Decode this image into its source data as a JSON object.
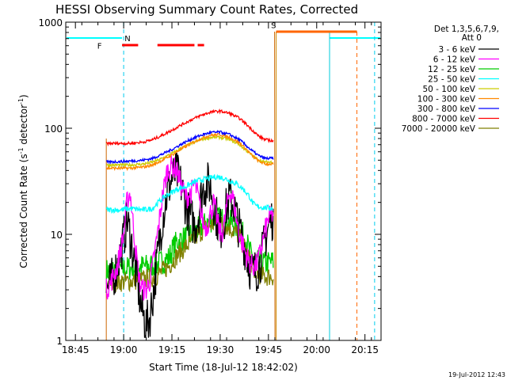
{
  "chart_data": {
    "type": "line",
    "title": "HESSI Observing Summary Count Rates, Corrected",
    "xlabel": "Start Time (18-Jul-12 18:42:02)",
    "ylabel_main": "Corrected Count Rate (s",
    "ylabel_sup1": "-1",
    "ylabel_mid": " detector",
    "ylabel_sup2": "-1",
    "ylabel_end": ")",
    "x_unit": "minutes since 18:42:02",
    "xlim": [
      0,
      98
    ],
    "ylim": [
      1,
      1000
    ],
    "yscale": "log",
    "x_ticks": [
      {
        "label": "18:45",
        "x": 3
      },
      {
        "label": "19:00",
        "x": 18
      },
      {
        "label": "19:15",
        "x": 33
      },
      {
        "label": "19:30",
        "x": 48
      },
      {
        "label": "19:45",
        "x": 63
      },
      {
        "label": "20:00",
        "x": 78
      },
      {
        "label": "20:15",
        "x": 93
      }
    ],
    "y_ticks": [
      {
        "label": "1",
        "v": 1
      },
      {
        "label": "10",
        "v": 10
      },
      {
        "label": "100",
        "v": 100
      },
      {
        "label": "1000",
        "v": 1000
      }
    ],
    "legend_header": [
      "Det 1,3,5,6,7,9,",
      "Att 0"
    ],
    "legend_placement": "right",
    "timestamp": "19-Jul-2012 12:43",
    "data_window": [
      12.6,
      64.9
    ],
    "series": [
      {
        "name": "3 - 6 keV",
        "color": "#000000",
        "points": [
          [
            12.6,
            3
          ],
          [
            14,
            3.5
          ],
          [
            16,
            5
          ],
          [
            18,
            9
          ],
          [
            19,
            14
          ],
          [
            20.5,
            8
          ],
          [
            22,
            4
          ],
          [
            23.5,
            2
          ],
          [
            25,
            1.4
          ],
          [
            26,
            1.6
          ],
          [
            27,
            2.5
          ],
          [
            28.5,
            6
          ],
          [
            30,
            14
          ],
          [
            31.5,
            24
          ],
          [
            33,
            34
          ],
          [
            34.5,
            38
          ],
          [
            36,
            28
          ],
          [
            37.5,
            18
          ],
          [
            39,
            14
          ],
          [
            40,
            12
          ],
          [
            41,
            14
          ],
          [
            42,
            22
          ],
          [
            43,
            28
          ],
          [
            44,
            30
          ],
          [
            45,
            28
          ],
          [
            46,
            20
          ],
          [
            47,
            14
          ],
          [
            48,
            11
          ],
          [
            49,
            13
          ],
          [
            50,
            18
          ],
          [
            51,
            22
          ],
          [
            52,
            20
          ],
          [
            53,
            15
          ],
          [
            54,
            11
          ],
          [
            55,
            9
          ],
          [
            56,
            7
          ],
          [
            57,
            5
          ],
          [
            58,
            4.5
          ],
          [
            59,
            4.5
          ],
          [
            60,
            5
          ],
          [
            61,
            6.5
          ],
          [
            62,
            9
          ],
          [
            63,
            12
          ],
          [
            64.6,
            15
          ]
        ]
      },
      {
        "name": "6 - 12 keV",
        "color": "#ff00ff",
        "points": [
          [
            12.6,
            3
          ],
          [
            14,
            3.5
          ],
          [
            16,
            5
          ],
          [
            18,
            10
          ],
          [
            19,
            20
          ],
          [
            20,
            25
          ],
          [
            21,
            12
          ],
          [
            22,
            6
          ],
          [
            23,
            3.5
          ],
          [
            24,
            3
          ],
          [
            25,
            3
          ],
          [
            26,
            3.5
          ],
          [
            27,
            5
          ],
          [
            28.5,
            10
          ],
          [
            30,
            22
          ],
          [
            31.5,
            40
          ],
          [
            33,
            45
          ],
          [
            34.5,
            40
          ],
          [
            36,
            28
          ],
          [
            37.5,
            22
          ],
          [
            39,
            25
          ],
          [
            40,
            30
          ],
          [
            41,
            24
          ],
          [
            42,
            16
          ],
          [
            43,
            12
          ],
          [
            44,
            12
          ],
          [
            45,
            16
          ],
          [
            46,
            20
          ],
          [
            47,
            14
          ],
          [
            48,
            10
          ],
          [
            49,
            11
          ],
          [
            50,
            18
          ],
          [
            51,
            26
          ],
          [
            52,
            22
          ],
          [
            53,
            14
          ],
          [
            54,
            10
          ],
          [
            55,
            8
          ],
          [
            56,
            6.5
          ],
          [
            57,
            5.5
          ],
          [
            58,
            5
          ],
          [
            59,
            5
          ],
          [
            60,
            6
          ],
          [
            61,
            8
          ],
          [
            62,
            11
          ],
          [
            63,
            14
          ],
          [
            64.6,
            16
          ]
        ]
      },
      {
        "name": "12 - 25 keV",
        "color": "#00cc00",
        "points": [
          [
            12.6,
            4.5
          ],
          [
            20,
            4.8
          ],
          [
            25,
            5
          ],
          [
            28,
            5.2
          ],
          [
            30,
            5.5
          ],
          [
            32,
            6
          ],
          [
            33,
            7
          ],
          [
            34.5,
            8.5
          ],
          [
            36,
            9
          ],
          [
            38,
            9.5
          ],
          [
            40,
            10.5
          ],
          [
            42,
            11.5
          ],
          [
            44,
            13
          ],
          [
            46,
            14
          ],
          [
            48,
            14
          ],
          [
            50,
            13.5
          ],
          [
            52,
            12.5
          ],
          [
            54,
            11
          ],
          [
            56,
            9
          ],
          [
            57,
            7
          ],
          [
            58,
            6
          ],
          [
            60,
            5.5
          ],
          [
            62,
            5.3
          ],
          [
            64.6,
            5.5
          ]
        ]
      },
      {
        "name": "25 - 50 keV",
        "color": "#00ffff",
        "points": [
          [
            12.6,
            17
          ],
          [
            17,
            17
          ],
          [
            20,
            17.5
          ],
          [
            24,
            17
          ],
          [
            27,
            17.5
          ],
          [
            28,
            19
          ],
          [
            29.5,
            21
          ],
          [
            31,
            23
          ],
          [
            33,
            25
          ],
          [
            35,
            27
          ],
          [
            37,
            28
          ],
          [
            39,
            30
          ],
          [
            41,
            32
          ],
          [
            43,
            33
          ],
          [
            45,
            34
          ],
          [
            47,
            35
          ],
          [
            49,
            34
          ],
          [
            51,
            32
          ],
          [
            53,
            30
          ],
          [
            55,
            27
          ],
          [
            57,
            23
          ],
          [
            58,
            20
          ],
          [
            59,
            18.5
          ],
          [
            61,
            18
          ],
          [
            64.6,
            17.5
          ]
        ]
      },
      {
        "name": "50 - 100 keV",
        "color": "#cccc00",
        "points": [
          [
            12.6,
            45
          ],
          [
            20,
            45
          ],
          [
            24,
            46
          ],
          [
            27,
            48
          ],
          [
            30,
            52
          ],
          [
            33,
            58
          ],
          [
            36,
            65
          ],
          [
            39,
            72
          ],
          [
            42,
            78
          ],
          [
            45,
            82
          ],
          [
            48,
            82
          ],
          [
            51,
            78
          ],
          [
            54,
            70
          ],
          [
            56,
            62
          ],
          [
            58,
            55
          ],
          [
            60,
            50
          ],
          [
            62,
            48
          ],
          [
            64.6,
            48
          ]
        ]
      },
      {
        "name": "100 - 300 keV",
        "color": "#ff8800",
        "points": [
          [
            12.6,
            42
          ],
          [
            20,
            42
          ],
          [
            24,
            43
          ],
          [
            27,
            45
          ],
          [
            30,
            50
          ],
          [
            33,
            56
          ],
          [
            36,
            64
          ],
          [
            39,
            72
          ],
          [
            42,
            80
          ],
          [
            45,
            86
          ],
          [
            48,
            87
          ],
          [
            51,
            82
          ],
          [
            54,
            73
          ],
          [
            56,
            64
          ],
          [
            58,
            55
          ],
          [
            60,
            49
          ],
          [
            62,
            46
          ],
          [
            64.6,
            46
          ]
        ]
      },
      {
        "name": "300 - 800 keV",
        "color": "#0000ff",
        "points": [
          [
            12.6,
            48
          ],
          [
            20,
            49
          ],
          [
            24,
            50
          ],
          [
            27,
            52
          ],
          [
            30,
            57
          ],
          [
            33,
            63
          ],
          [
            36,
            71
          ],
          [
            39,
            79
          ],
          [
            42,
            86
          ],
          [
            45,
            91
          ],
          [
            48,
            92
          ],
          [
            51,
            87
          ],
          [
            54,
            78
          ],
          [
            56,
            69
          ],
          [
            58,
            61
          ],
          [
            60,
            55
          ],
          [
            62,
            52
          ],
          [
            64.6,
            52
          ]
        ]
      },
      {
        "name": "800 - 7000 keV",
        "color": "#ff0000",
        "points": [
          [
            12.6,
            72
          ],
          [
            20,
            72
          ],
          [
            24,
            74
          ],
          [
            27,
            78
          ],
          [
            30,
            86
          ],
          [
            33,
            96
          ],
          [
            36,
            108
          ],
          [
            39,
            120
          ],
          [
            42,
            132
          ],
          [
            45,
            142
          ],
          [
            48,
            145
          ],
          [
            51,
            138
          ],
          [
            54,
            124
          ],
          [
            56,
            110
          ],
          [
            58,
            96
          ],
          [
            60,
            84
          ],
          [
            62,
            78
          ],
          [
            64.6,
            76
          ]
        ]
      },
      {
        "name": "7000 - 20000 keV",
        "color": "#808000",
        "points": [
          [
            12.6,
            3.5
          ],
          [
            20,
            3.6
          ],
          [
            25,
            3.8
          ],
          [
            28,
            4
          ],
          [
            30,
            4.5
          ],
          [
            32,
            5
          ],
          [
            34,
            6
          ],
          [
            36,
            7
          ],
          [
            38,
            8
          ],
          [
            40,
            9
          ],
          [
            42,
            10.5
          ],
          [
            44,
            12
          ],
          [
            46,
            12.5
          ],
          [
            48,
            12.5
          ],
          [
            50,
            12
          ],
          [
            52,
            11
          ],
          [
            54,
            9.5
          ],
          [
            56,
            7
          ],
          [
            58,
            5
          ],
          [
            60,
            4.2
          ],
          [
            62,
            4
          ],
          [
            64.6,
            4
          ]
        ]
      }
    ],
    "flag_labels": [
      {
        "label": "F",
        "x": 10.5,
        "v": 560,
        "color": "#ff0000"
      },
      {
        "label": "N",
        "x": 19.2,
        "v": 660,
        "color": "#00dddd"
      },
      {
        "label": "S",
        "x": 64.6,
        "v": 880,
        "color": "#ff6600"
      }
    ]
  }
}
